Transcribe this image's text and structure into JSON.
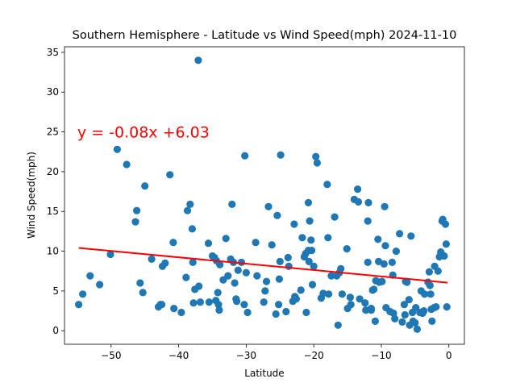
{
  "chart_data": {
    "type": "scatter",
    "title": "Southern Hemisphere - Latitude vs Wind Speed(mph) 2024-11-10",
    "xlabel": "Latitude",
    "ylabel": "Wind Speed(mph)",
    "xlim": [
      -56.9,
      2.3
    ],
    "ylim": [
      -1.7,
      35.7
    ],
    "xticks": [
      -50,
      -40,
      -30,
      -20,
      -10,
      0
    ],
    "xtick_labels": [
      "−50",
      "−40",
      "−30",
      "−20",
      "−10",
      "0"
    ],
    "yticks": [
      0,
      5,
      10,
      15,
      20,
      25,
      30,
      35
    ],
    "ytick_labels": [
      "0",
      "5",
      "10",
      "15",
      "20",
      "25",
      "30",
      "35"
    ],
    "grid": false,
    "marker_color": "#1f77b4",
    "line_color": "#ff0000",
    "annotation": {
      "text": "y = -0.08x +6.03",
      "x": -55,
      "y": 25
    },
    "regression": {
      "slope": -0.08,
      "intercept": 6.03,
      "x_start": -54.8,
      "x_end": -0.2
    },
    "points": [
      [
        -54.8,
        3.3
      ],
      [
        -54.2,
        4.6
      ],
      [
        -53.1,
        6.9
      ],
      [
        -51.7,
        5.8
      ],
      [
        -50.1,
        9.6
      ],
      [
        -49.1,
        22.8
      ],
      [
        -47.7,
        20.9
      ],
      [
        -46.4,
        13.7
      ],
      [
        -46.2,
        15.1
      ],
      [
        -45.7,
        6.0
      ],
      [
        -45.3,
        4.8
      ],
      [
        -45.0,
        18.2
      ],
      [
        -44.0,
        9.0
      ],
      [
        -43.0,
        3.0
      ],
      [
        -42.7,
        3.3
      ],
      [
        -42.5,
        3.3
      ],
      [
        -42.4,
        8.1
      ],
      [
        -42.0,
        8.5
      ],
      [
        -41.3,
        19.6
      ],
      [
        -40.8,
        11.1
      ],
      [
        -40.7,
        2.8
      ],
      [
        -39.6,
        2.3
      ],
      [
        -38.9,
        6.7
      ],
      [
        -38.7,
        15.1
      ],
      [
        -38.3,
        15.9
      ],
      [
        -38.0,
        12.8
      ],
      [
        -37.9,
        8.6
      ],
      [
        -37.8,
        3.5
      ],
      [
        -37.6,
        5.2
      ],
      [
        -37.1,
        34.0
      ],
      [
        -37.0,
        5.6
      ],
      [
        -36.8,
        3.6
      ],
      [
        -35.6,
        11.0
      ],
      [
        -35.5,
        3.6
      ],
      [
        -35.0,
        9.4
      ],
      [
        -34.7,
        9.2
      ],
      [
        -34.5,
        3.8
      ],
      [
        -34.4,
        8.8
      ],
      [
        -34.2,
        4.8
      ],
      [
        -34.1,
        3.3
      ],
      [
        -34.0,
        2.6
      ],
      [
        -33.9,
        8.3
      ],
      [
        -33.4,
        6.4
      ],
      [
        -33.0,
        11.6
      ],
      [
        -32.7,
        6.9
      ],
      [
        -32.3,
        9.0
      ],
      [
        -32.1,
        15.9
      ],
      [
        -31.9,
        8.6
      ],
      [
        -31.7,
        6.0
      ],
      [
        -31.5,
        4.0
      ],
      [
        -31.4,
        3.7
      ],
      [
        -31.2,
        7.6
      ],
      [
        -30.7,
        8.6
      ],
      [
        -30.3,
        3.3
      ],
      [
        -30.2,
        22.0
      ],
      [
        -30.0,
        7.3
      ],
      [
        -29.8,
        2.3
      ],
      [
        -28.6,
        11.1
      ],
      [
        -28.4,
        6.9
      ],
      [
        -27.4,
        3.6
      ],
      [
        -27.2,
        5.0
      ],
      [
        -27.0,
        6.2
      ],
      [
        -26.7,
        15.6
      ],
      [
        -26.2,
        10.8
      ],
      [
        -25.6,
        2.1
      ],
      [
        -25.4,
        14.5
      ],
      [
        -25.2,
        3.3
      ],
      [
        -25.1,
        6.5
      ],
      [
        -25.0,
        8.7
      ],
      [
        -24.9,
        22.1
      ],
      [
        -24.1,
        2.4
      ],
      [
        -23.8,
        9.2
      ],
      [
        -23.7,
        8.1
      ],
      [
        -23.1,
        3.7
      ],
      [
        -22.9,
        13.4
      ],
      [
        -22.8,
        4.3
      ],
      [
        -22.6,
        4.0
      ],
      [
        -21.9,
        5.1
      ],
      [
        -21.7,
        11.7
      ],
      [
        -21.4,
        9.3
      ],
      [
        -21.2,
        9.7
      ],
      [
        -21.1,
        2.3
      ],
      [
        -20.8,
        10.1
      ],
      [
        -20.8,
        16.1
      ],
      [
        -20.7,
        8.7
      ],
      [
        -20.6,
        13.8
      ],
      [
        -20.4,
        11.4
      ],
      [
        -20.3,
        10.1
      ],
      [
        -20.2,
        5.8
      ],
      [
        -20.0,
        8.1
      ],
      [
        -19.7,
        21.9
      ],
      [
        -19.5,
        21.1
      ],
      [
        -18.9,
        4.1
      ],
      [
        -18.6,
        4.7
      ],
      [
        -18.0,
        18.4
      ],
      [
        -17.9,
        11.7
      ],
      [
        -17.8,
        4.6
      ],
      [
        -17.4,
        6.9
      ],
      [
        -16.9,
        14.3
      ],
      [
        -16.6,
        6.9
      ],
      [
        -16.4,
        0.7
      ],
      [
        -16.2,
        7.3
      ],
      [
        -16.0,
        7.8
      ],
      [
        -15.8,
        4.6
      ],
      [
        -15.1,
        10.3
      ],
      [
        -15.0,
        2.8
      ],
      [
        -14.6,
        4.2
      ],
      [
        -14.5,
        3.3
      ],
      [
        -14.0,
        16.5
      ],
      [
        -13.5,
        17.8
      ],
      [
        -13.4,
        16.2
      ],
      [
        -13.2,
        4.0
      ],
      [
        -12.4,
        3.5
      ],
      [
        -12.3,
        2.6
      ],
      [
        -12.0,
        8.6
      ],
      [
        -12.0,
        13.8
      ],
      [
        -11.9,
        16.1
      ],
      [
        -11.5,
        2.8
      ],
      [
        -11.5,
        2.6
      ],
      [
        -11.3,
        5.1
      ],
      [
        -11.1,
        5.2
      ],
      [
        -10.9,
        1.2
      ],
      [
        -10.8,
        6.3
      ],
      [
        -10.5,
        11.5
      ],
      [
        -10.4,
        8.7
      ],
      [
        -10.3,
        6.1
      ],
      [
        -9.9,
        6.2
      ],
      [
        -9.6,
        8.4
      ],
      [
        -9.5,
        15.6
      ],
      [
        -9.4,
        10.7
      ],
      [
        -9.3,
        2.9
      ],
      [
        -8.7,
        2.4
      ],
      [
        -8.4,
        8.6
      ],
      [
        -8.3,
        7.0
      ],
      [
        -8.2,
        2.2
      ],
      [
        -8.0,
        1.5
      ],
      [
        -7.8,
        10.0
      ],
      [
        -7.3,
        12.2
      ],
      [
        -6.9,
        1.1
      ],
      [
        -6.6,
        3.3
      ],
      [
        -6.5,
        2.0
      ],
      [
        -6.4,
        6.2
      ],
      [
        -6.2,
        6.1
      ],
      [
        -5.9,
        3.9
      ],
      [
        -5.8,
        0.7
      ],
      [
        -5.6,
        11.9
      ],
      [
        -5.4,
        2.3
      ],
      [
        -5.3,
        1.2
      ],
      [
        -5.0,
        1.0
      ],
      [
        -4.9,
        2.9
      ],
      [
        -4.7,
        0.2
      ],
      [
        -4.3,
        2.3
      ],
      [
        -4.1,
        5.0
      ],
      [
        -3.9,
        2.2
      ],
      [
        -3.7,
        2.5
      ],
      [
        -3.6,
        4.6
      ],
      [
        -3.1,
        6.1
      ],
      [
        -2.9,
        7.4
      ],
      [
        -2.8,
        5.7
      ],
      [
        -2.7,
        4.6
      ],
      [
        -2.6,
        2.7
      ],
      [
        -2.5,
        1.2
      ],
      [
        -2.2,
        2.9
      ],
      [
        -2.1,
        8.1
      ],
      [
        -1.9,
        3.0
      ],
      [
        -1.6,
        7.5
      ],
      [
        -1.4,
        9.3
      ],
      [
        -1.2,
        9.9
      ],
      [
        -1.0,
        13.8
      ],
      [
        -0.9,
        14.0
      ],
      [
        -0.7,
        9.4
      ],
      [
        -0.5,
        13.4
      ],
      [
        -0.4,
        10.9
      ],
      [
        -0.3,
        3.0
      ]
    ]
  }
}
